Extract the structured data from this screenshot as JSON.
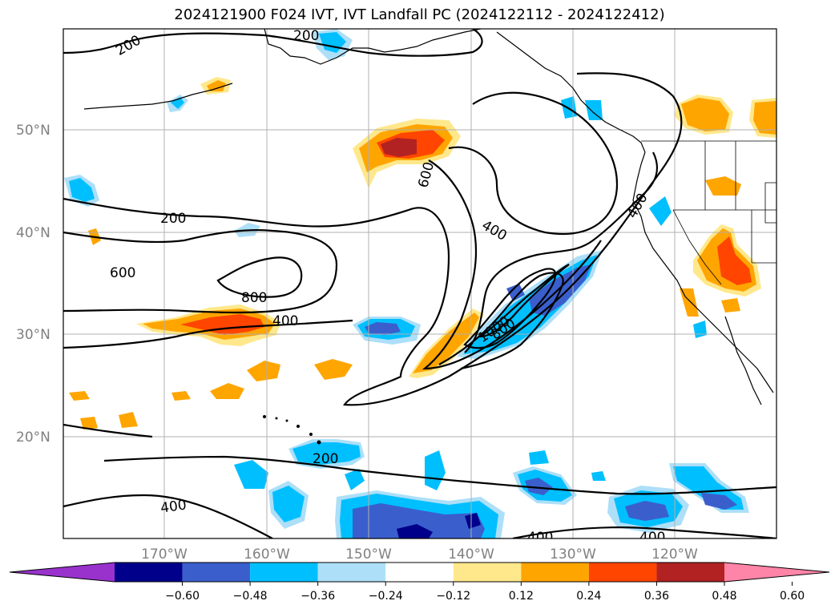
{
  "title": "2024121900 F024 IVT, IVT Landfall PC (2024122112 - 2024122412)",
  "lat_labels": [
    "50°N",
    "40°N",
    "30°N",
    "20°N"
  ],
  "lon_labels": [
    "170°W",
    "160°W",
    "150°W",
    "140°W",
    "130°W",
    "120°W"
  ],
  "contour_labels": [
    "200",
    "200",
    "600",
    "800",
    "400",
    "600",
    "400",
    "1000",
    "800",
    "400",
    "200",
    "400",
    "400",
    "400",
    "200"
  ],
  "colorbar": {
    "ticks": [
      "−0.60",
      "−0.48",
      "−0.36",
      "−0.24",
      "−0.12",
      "0.12",
      "0.24",
      "0.36",
      "0.48",
      "0.60"
    ],
    "colors": [
      "#9932CC",
      "#00008B",
      "#3A5FCD",
      "#00BFFF",
      "#ADDFF8",
      "#FFFFFF",
      "#FFE88C",
      "#FFA500",
      "#FF4500",
      "#B22222",
      "#FF85A8"
    ]
  },
  "fill_colors": {
    "light_blue": "#ADDFF8",
    "blue": "#00BFFF",
    "mid_blue": "#3A5FCD",
    "navy": "#00008B",
    "yellow": "#FFE88C",
    "orange": "#FFA500",
    "red_orange": "#FF4500",
    "dark_red": "#B22222"
  }
}
